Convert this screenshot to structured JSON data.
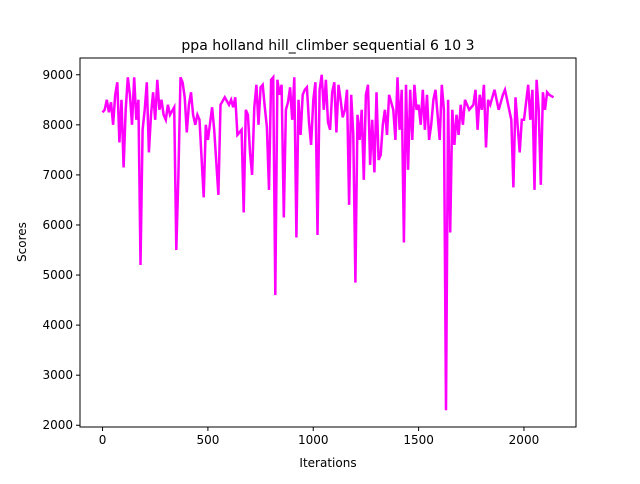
{
  "chart_data": {
    "type": "line",
    "title": "ppa holland hill_climber sequential 6 10 3",
    "x_label": "Iterations",
    "y_label": "Scores",
    "xlim": [
      -107,
      2247
    ],
    "ylim": [
      1965,
      9335
    ],
    "xticks": [
      0,
      500,
      1000,
      1500,
      2000
    ],
    "yticks": [
      2000,
      3000,
      4000,
      5000,
      6000,
      7000,
      8000,
      9000
    ],
    "series": [
      {
        "color": "#ff00ff",
        "x": [
          0,
          10,
          20,
          30,
          40,
          50,
          60,
          70,
          80,
          90,
          100,
          110,
          120,
          130,
          140,
          150,
          160,
          170,
          180,
          190,
          200,
          210,
          220,
          230,
          240,
          250,
          260,
          270,
          280,
          290,
          300,
          310,
          320,
          340,
          350,
          360,
          370,
          380,
          390,
          400,
          410,
          420,
          430,
          440,
          450,
          460,
          480,
          490,
          500,
          520,
          530,
          550,
          560,
          580,
          600,
          610,
          620,
          630,
          640,
          660,
          670,
          680,
          690,
          700,
          710,
          720,
          730,
          740,
          750,
          760,
          770,
          780,
          790,
          800,
          810,
          820,
          830,
          840,
          850,
          860,
          870,
          880,
          890,
          900,
          910,
          920,
          930,
          940,
          950,
          960,
          970,
          980,
          990,
          1000,
          1010,
          1020,
          1030,
          1040,
          1050,
          1060,
          1070,
          1080,
          1090,
          1100,
          1110,
          1120,
          1130,
          1140,
          1150,
          1160,
          1170,
          1180,
          1190,
          1200,
          1210,
          1220,
          1230,
          1240,
          1250,
          1260,
          1270,
          1280,
          1290,
          1300,
          1310,
          1320,
          1330,
          1340,
          1350,
          1360,
          1380,
          1390,
          1400,
          1410,
          1420,
          1430,
          1440,
          1450,
          1460,
          1470,
          1480,
          1490,
          1500,
          1510,
          1520,
          1530,
          1540,
          1550,
          1560,
          1570,
          1580,
          1600,
          1610,
          1620,
          1630,
          1640,
          1650,
          1660,
          1670,
          1680,
          1690,
          1700,
          1710,
          1720,
          1740,
          1760,
          1770,
          1780,
          1790,
          1800,
          1810,
          1820,
          1830,
          1840,
          1860,
          1880,
          1900,
          1910,
          1920,
          1940,
          1950,
          1960,
          1980,
          1990,
          2000,
          2020,
          2030,
          2040,
          2050,
          2060,
          2070,
          2080,
          2090,
          2100,
          2110,
          2120,
          2140
        ],
        "values": [
          8250,
          8300,
          8500,
          8250,
          8450,
          8000,
          8600,
          8850,
          7650,
          8500,
          7150,
          8300,
          8950,
          8600,
          8000,
          8950,
          8100,
          8500,
          5200,
          7900,
          8300,
          8850,
          7450,
          8200,
          8650,
          8100,
          8900,
          8300,
          8500,
          8200,
          8100,
          8400,
          8200,
          8350,
          5500,
          7000,
          8950,
          8850,
          8550,
          7850,
          8400,
          8650,
          8200,
          8000,
          8200,
          8100,
          6550,
          8000,
          7700,
          8350,
          7900,
          6600,
          8400,
          8550,
          8400,
          8500,
          8350,
          8550,
          7800,
          7900,
          6250,
          8300,
          8200,
          7450,
          7000,
          8350,
          8800,
          8000,
          8750,
          8800,
          8350,
          7950,
          6700,
          8900,
          8950,
          4600,
          8900,
          8600,
          8800,
          6150,
          8300,
          8450,
          8750,
          8100,
          8950,
          5750,
          8500,
          7800,
          8600,
          8700,
          8750,
          8050,
          7600,
          8500,
          8850,
          5800,
          8700,
          9000,
          8300,
          8900,
          8050,
          7900,
          8650,
          8850,
          7850,
          8800,
          8500,
          8150,
          8300,
          8700,
          6400,
          8600,
          7800,
          4850,
          8200,
          7700,
          8300,
          6900,
          8600,
          8800,
          7200,
          8100,
          7050,
          8650,
          7300,
          7400,
          8000,
          8300,
          7800,
          8600,
          8300,
          7700,
          8950,
          7900,
          8700,
          5650,
          8800,
          7100,
          8700,
          7700,
          8800,
          8300,
          8400,
          8000,
          8700,
          7900,
          8600,
          7700,
          8000,
          8500,
          8700,
          7700,
          8800,
          8300,
          2300,
          8500,
          5850,
          8300,
          7600,
          8200,
          7800,
          8400,
          8000,
          8500,
          8300,
          8400,
          8700,
          7900,
          8600,
          8300,
          8800,
          7550,
          8500,
          8400,
          8700,
          8300,
          8600,
          8700,
          8500,
          8100,
          6750,
          8550,
          7450,
          8100,
          8100,
          8800,
          8100,
          8700,
          6700,
          8900,
          8300,
          6800,
          8650,
          8300,
          8650,
          8600,
          8550
        ]
      }
    ]
  }
}
